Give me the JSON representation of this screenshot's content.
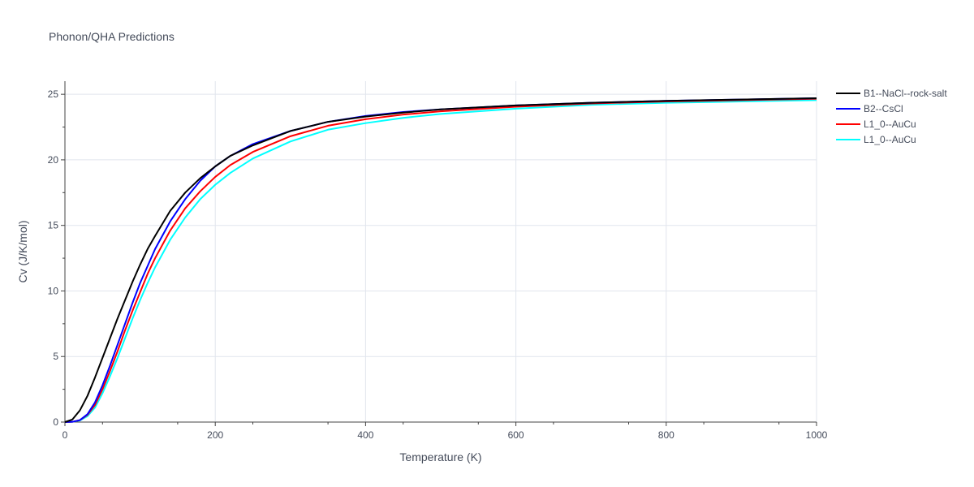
{
  "chart_data": {
    "type": "line",
    "title": "Phonon/QHA Predictions",
    "xlabel": "Temperature (K)",
    "ylabel": "Cv (J/K/mol)",
    "xlim": [
      0,
      1000
    ],
    "ylim": [
      0,
      26
    ],
    "x_ticks": [
      0,
      200,
      400,
      600,
      800,
      1000
    ],
    "y_ticks": [
      0,
      5,
      10,
      15,
      20,
      25
    ],
    "x_tick_labels": [
      "0",
      "200",
      "400",
      "600",
      "800",
      "1000"
    ],
    "y_tick_labels": [
      "0",
      "5",
      "10",
      "15",
      "20",
      "25"
    ],
    "grid": true,
    "legend_position": "top-right outside",
    "series": [
      {
        "name": "B1--NaCl--rock-salt",
        "color": "#000000",
        "x": [
          0,
          10,
          20,
          30,
          40,
          50,
          60,
          70,
          80,
          90,
          100,
          110,
          120,
          140,
          160,
          180,
          200,
          220,
          250,
          300,
          350,
          400,
          450,
          500,
          600,
          700,
          800,
          900,
          1000
        ],
        "y": [
          0,
          0.2,
          0.9,
          2.0,
          3.4,
          4.9,
          6.4,
          7.9,
          9.3,
          10.7,
          12.0,
          13.2,
          14.2,
          16.1,
          17.5,
          18.6,
          19.5,
          20.3,
          21.1,
          22.2,
          22.9,
          23.3,
          23.6,
          23.85,
          24.15,
          24.35,
          24.5,
          24.6,
          24.7
        ]
      },
      {
        "name": "B2--CsCl",
        "color": "#0000ff",
        "x": [
          0,
          10,
          20,
          30,
          40,
          50,
          60,
          70,
          80,
          90,
          100,
          110,
          120,
          140,
          160,
          180,
          200,
          220,
          250,
          300,
          350,
          400,
          450,
          500,
          600,
          700,
          800,
          900,
          1000
        ],
        "y": [
          0,
          0.02,
          0.15,
          0.6,
          1.5,
          2.8,
          4.3,
          5.9,
          7.5,
          9.1,
          10.6,
          11.9,
          13.2,
          15.3,
          17.0,
          18.4,
          19.5,
          20.3,
          21.2,
          22.2,
          22.9,
          23.35,
          23.65,
          23.85,
          24.15,
          24.35,
          24.5,
          24.6,
          24.7
        ]
      },
      {
        "name": "L1_0--AuCu",
        "color": "#ff0000",
        "x": [
          0,
          10,
          20,
          30,
          40,
          50,
          60,
          70,
          80,
          90,
          100,
          110,
          120,
          140,
          160,
          180,
          200,
          220,
          250,
          300,
          350,
          400,
          450,
          500,
          600,
          700,
          800,
          900,
          1000
        ],
        "y": [
          0,
          0.02,
          0.15,
          0.55,
          1.3,
          2.5,
          3.9,
          5.4,
          7.0,
          8.5,
          9.9,
          11.3,
          12.5,
          14.6,
          16.3,
          17.6,
          18.7,
          19.6,
          20.6,
          21.8,
          22.6,
          23.1,
          23.45,
          23.7,
          24.05,
          24.3,
          24.45,
          24.55,
          24.65
        ]
      },
      {
        "name": "L1_0--AuCu",
        "color": "#00ffff",
        "x": [
          0,
          10,
          20,
          30,
          40,
          50,
          60,
          70,
          80,
          90,
          100,
          110,
          120,
          140,
          160,
          180,
          200,
          220,
          250,
          300,
          350,
          400,
          450,
          500,
          600,
          700,
          800,
          900,
          1000
        ],
        "y": [
          0,
          0.02,
          0.12,
          0.45,
          1.1,
          2.2,
          3.5,
          4.9,
          6.4,
          7.9,
          9.3,
          10.6,
          11.8,
          13.9,
          15.6,
          17.0,
          18.1,
          19.0,
          20.1,
          21.4,
          22.3,
          22.8,
          23.2,
          23.5,
          23.9,
          24.2,
          24.35,
          24.45,
          24.55
        ]
      }
    ]
  }
}
